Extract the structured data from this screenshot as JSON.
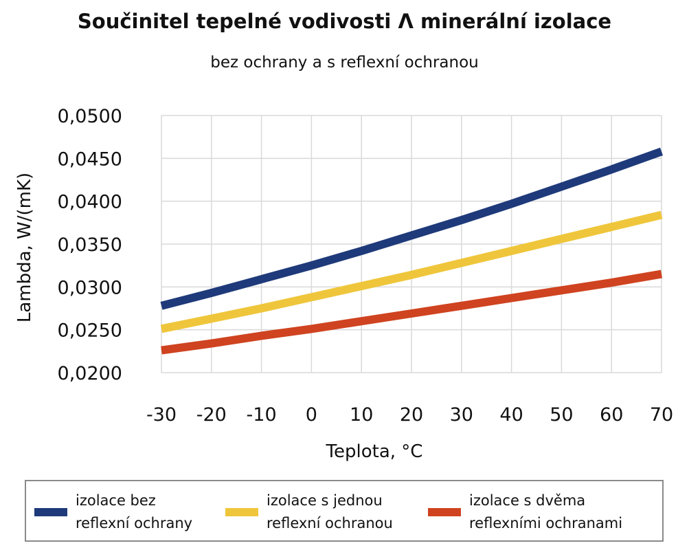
{
  "chart_data": {
    "type": "line",
    "title": "Součinitel tepelné vodivosti Λ minerální izolace",
    "subtitle": "bez ochrany a s reflexní ochranou",
    "xlabel": "Teplota, °C",
    "ylabel": "Lambda, W/(mK)",
    "x": [
      -30,
      -20,
      -10,
      0,
      10,
      20,
      30,
      40,
      50,
      60,
      70
    ],
    "xlim": [
      -30,
      70
    ],
    "ylim": [
      0.02,
      0.05
    ],
    "x_ticks": [
      "-30",
      "-20",
      "-10",
      "0",
      "10",
      "20",
      "30",
      "40",
      "50",
      "60",
      "70"
    ],
    "y_ticks": [
      "0,0200",
      "0,0250",
      "0,0300",
      "0,0350",
      "0,0400",
      "0,0450",
      "0,0500"
    ],
    "y_tick_values": [
      0.02,
      0.025,
      0.03,
      0.035,
      0.04,
      0.045,
      0.05
    ],
    "grid": true,
    "legend_position": "bottom",
    "series": [
      {
        "name": "izolace bez reflexní ochrany",
        "name_lines": [
          "izolace bez",
          "reflexní ochrany"
        ],
        "color": "#1f3a7a",
        "values": [
          0.0278,
          0.0293,
          0.0309,
          0.0325,
          0.0342,
          0.036,
          0.0378,
          0.0397,
          0.0417,
          0.0437,
          0.0458
        ]
      },
      {
        "name": "izolace s jednou reflexní ochranou",
        "name_lines": [
          "izolace s jednou",
          "reflexní ochranou"
        ],
        "color": "#efc63b",
        "values": [
          0.0251,
          0.0263,
          0.0275,
          0.0288,
          0.0301,
          0.0314,
          0.0328,
          0.0342,
          0.0356,
          0.037,
          0.0384
        ]
      },
      {
        "name": "izolace s dvěma reflexními ochranami",
        "name_lines": [
          "izolace s dvěma",
          "reflexními ochranami"
        ],
        "color": "#cf4320",
        "values": [
          0.0226,
          0.0234,
          0.0243,
          0.0251,
          0.026,
          0.0269,
          0.0278,
          0.0287,
          0.0296,
          0.0305,
          0.0315
        ]
      }
    ]
  }
}
